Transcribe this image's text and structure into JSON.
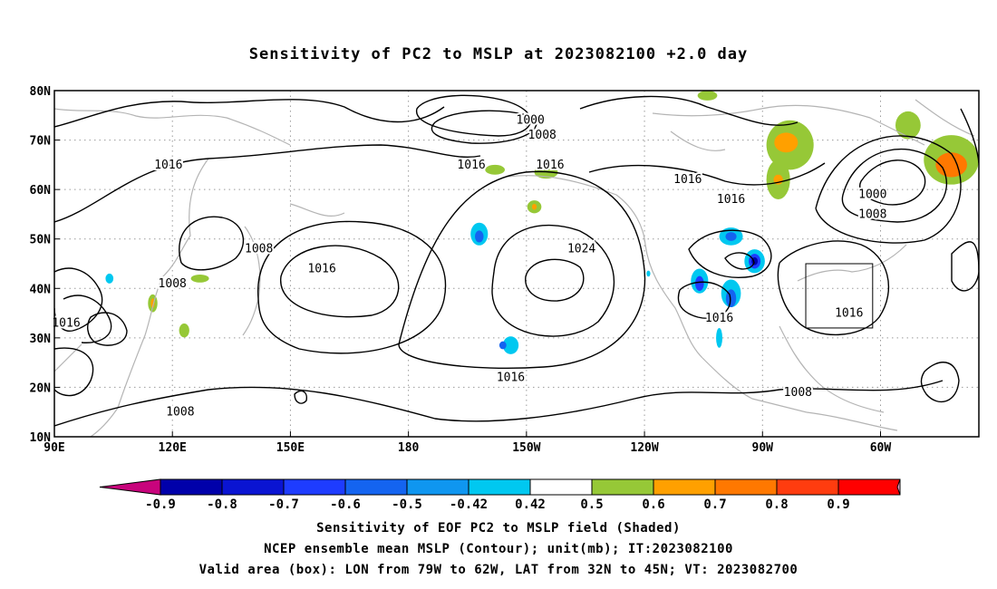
{
  "chart_data": {
    "type": "heatmap",
    "title": "Sensitivity of PC2 to MSLP at 2023082100 +2.0 day",
    "x_ticks": [
      "90E",
      "120E",
      "150E",
      "180",
      "150W",
      "120W",
      "90W",
      "60W"
    ],
    "y_ticks": [
      "80N",
      "70N",
      "60N",
      "50N",
      "40N",
      "30N",
      "20N",
      "10N"
    ],
    "lon_range": [
      90,
      325
    ],
    "lat_range": [
      10,
      80
    ],
    "grid": "dotted",
    "colorbar": {
      "labels": [
        "-0.9",
        "-0.8",
        "-0.7",
        "-0.6",
        "-0.5",
        "-0.42",
        "0.42",
        "0.5",
        "0.6",
        "0.7",
        "0.8",
        "0.9"
      ],
      "colors": [
        "#c8047c",
        "#0000aa",
        "#0a14d2",
        "#1e3cff",
        "#1464f0",
        "#0f96f0",
        "#00c8f0",
        "#ffffff",
        "#96c837",
        "#ffa000",
        "#ff7800",
        "#ff3c0f",
        "#ff0000",
        "#f0a0c8"
      ]
    },
    "contour_labels": [
      {
        "text": "1000",
        "lon": 211,
        "lat": 74
      },
      {
        "text": "1008",
        "lon": 214,
        "lat": 71
      },
      {
        "text": "1016",
        "lon": 119,
        "lat": 65
      },
      {
        "text": "1016",
        "lon": 196,
        "lat": 65
      },
      {
        "text": "1016",
        "lon": 216,
        "lat": 65
      },
      {
        "text": "1016",
        "lon": 251,
        "lat": 62
      },
      {
        "text": "1016",
        "lon": 262,
        "lat": 58
      },
      {
        "text": "1000",
        "lon": 298,
        "lat": 59
      },
      {
        "text": "1008",
        "lon": 298,
        "lat": 55
      },
      {
        "text": "1024",
        "lon": 224,
        "lat": 48
      },
      {
        "text": "1008",
        "lon": 142,
        "lat": 48
      },
      {
        "text": "1016",
        "lon": 158,
        "lat": 44
      },
      {
        "text": "1008",
        "lon": 120,
        "lat": 41
      },
      {
        "text": "1016",
        "lon": 93,
        "lat": 33
      },
      {
        "text": "1016",
        "lon": 259,
        "lat": 34
      },
      {
        "text": "1016",
        "lon": 292,
        "lat": 35
      },
      {
        "text": "1016",
        "lon": 206,
        "lat": 22
      },
      {
        "text": "1008",
        "lon": 279,
        "lat": 19
      },
      {
        "text": "1008",
        "lon": 122,
        "lat": 15
      }
    ],
    "valid_box": {
      "lon": [
        281,
        298
      ],
      "lat": [
        32,
        45
      ]
    }
  },
  "captions": {
    "line1": "Sensitivity of EOF PC2 to MSLP field (Shaded)",
    "line2": "NCEP ensemble mean MSLP (Contour); unit(mb); IT:2023082100",
    "line3": "Valid area (box): LON from 79W to 62W, LAT from 32N to 45N; VT: 2023082700"
  }
}
